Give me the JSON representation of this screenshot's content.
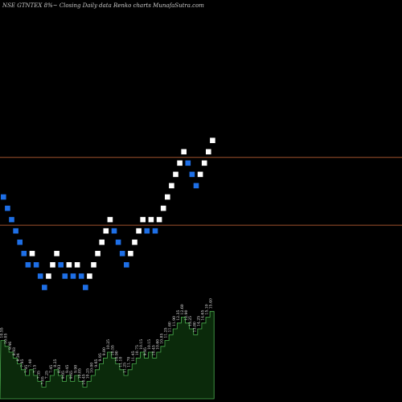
{
  "chart_data": {
    "type": "renko",
    "title": "NSE GTNTEX  8%~  Closing Daily data  Renko  charts MunafaSutra.com",
    "colors": {
      "background": "#000000",
      "up_brick": "#ffffff",
      "down_brick": "#1e6fe6",
      "level_line": "#a0522d",
      "volume_fill": "#0b2a0b",
      "volume_stroke": "#4caf50",
      "volume_label": "#e6e6e6"
    },
    "price_axis": {
      "min": 0,
      "max": 32
    },
    "levels": [
      19.5,
      13.5
    ],
    "bricks": [
      {
        "dir": "down",
        "price": 16
      },
      {
        "dir": "down",
        "price": 15
      },
      {
        "dir": "down",
        "price": 14
      },
      {
        "dir": "down",
        "price": 13
      },
      {
        "dir": "down",
        "price": 12
      },
      {
        "dir": "down",
        "price": 11
      },
      {
        "dir": "down",
        "price": 10
      },
      {
        "dir": "up",
        "price": 11
      },
      {
        "dir": "down",
        "price": 10
      },
      {
        "dir": "down",
        "price": 9
      },
      {
        "dir": "down",
        "price": 8
      },
      {
        "dir": "up",
        "price": 9
      },
      {
        "dir": "up",
        "price": 10
      },
      {
        "dir": "up",
        "price": 11
      },
      {
        "dir": "down",
        "price": 10
      },
      {
        "dir": "down",
        "price": 9
      },
      {
        "dir": "up",
        "price": 10
      },
      {
        "dir": "down",
        "price": 9
      },
      {
        "dir": "up",
        "price": 10
      },
      {
        "dir": "down",
        "price": 9
      },
      {
        "dir": "down",
        "price": 8
      },
      {
        "dir": "up",
        "price": 9
      },
      {
        "dir": "up",
        "price": 10
      },
      {
        "dir": "up",
        "price": 11
      },
      {
        "dir": "up",
        "price": 12
      },
      {
        "dir": "up",
        "price": 13
      },
      {
        "dir": "up",
        "price": 14
      },
      {
        "dir": "down",
        "price": 13
      },
      {
        "dir": "down",
        "price": 12
      },
      {
        "dir": "down",
        "price": 11
      },
      {
        "dir": "down",
        "price": 10
      },
      {
        "dir": "up",
        "price": 11
      },
      {
        "dir": "up",
        "price": 12
      },
      {
        "dir": "up",
        "price": 13
      },
      {
        "dir": "up",
        "price": 14
      },
      {
        "dir": "down",
        "price": 13
      },
      {
        "dir": "up",
        "price": 14
      },
      {
        "dir": "down",
        "price": 13
      },
      {
        "dir": "up",
        "price": 14
      },
      {
        "dir": "up",
        "price": 15
      },
      {
        "dir": "up",
        "price": 16
      },
      {
        "dir": "up",
        "price": 17
      },
      {
        "dir": "up",
        "price": 18
      },
      {
        "dir": "up",
        "price": 19
      },
      {
        "dir": "up",
        "price": 20
      },
      {
        "dir": "down",
        "price": 19
      },
      {
        "dir": "down",
        "price": 18
      },
      {
        "dir": "down",
        "price": 17
      },
      {
        "dir": "up",
        "price": 18
      },
      {
        "dir": "up",
        "price": 19
      },
      {
        "dir": "up",
        "price": 20
      },
      {
        "dir": "up",
        "price": 21
      }
    ],
    "volume_labels": [
      "10.55",
      "10.05",
      "9.46",
      "8.93",
      "8.34",
      "7.95",
      "7.95",
      "7.40",
      "7.15",
      "7.35",
      "7.05",
      "7.25",
      "7.45",
      "8.25",
      "8.93",
      "9.05",
      "9.45",
      "9.65",
      "9.90",
      "10.05",
      "10.45",
      "10.25",
      "10.00",
      "9.65",
      "9.95",
      "9.80",
      "10.25",
      "10.55",
      "10.90",
      "11.10",
      "11.25",
      "11.70",
      "11.45",
      "10.75",
      "10.15",
      "9.95",
      "10.15",
      "10.45",
      "10.60",
      "10.85",
      "11.25",
      "11.60",
      "11.90",
      "12.35",
      "12.60",
      "12.90",
      "13.25",
      "13.80",
      "14.25",
      "14.65",
      "15.10",
      "15.40"
    ]
  }
}
